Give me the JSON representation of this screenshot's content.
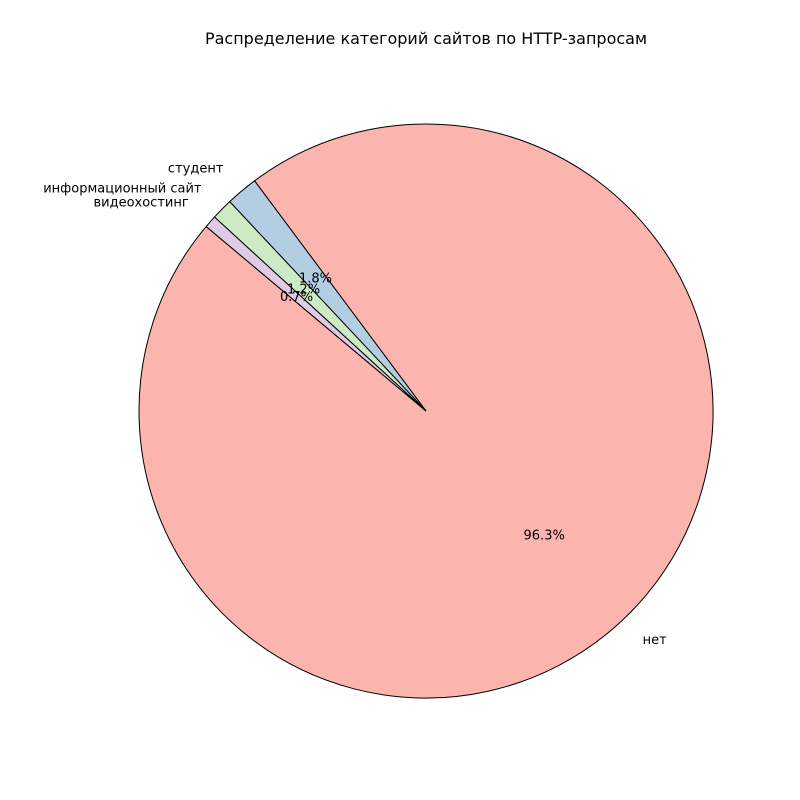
{
  "chart_data": {
    "type": "pie",
    "title": "Распределение категорий сайтов по HTTP-запросам",
    "categories": [
      "нет",
      "студент",
      "информационный сайт",
      "видеохостинг"
    ],
    "values": [
      96.3,
      1.8,
      1.2,
      0.7
    ],
    "value_labels": [
      "96.3%",
      "1.8%",
      "1.2%",
      "0.7%"
    ],
    "colors": [
      "#fbb4ae",
      "#b3cde3",
      "#ccebc5",
      "#decbe4"
    ],
    "start_angle_deg": 140,
    "direction": "counterclockwise",
    "legend": "none"
  }
}
